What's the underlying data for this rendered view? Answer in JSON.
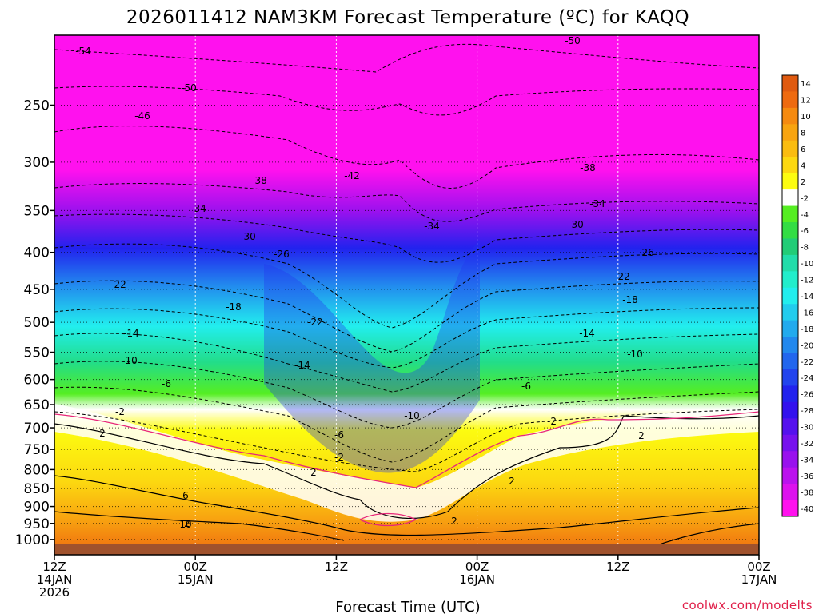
{
  "chart_data": {
    "type": "heatmap",
    "title": "2026011412 NAM3KM Forecast Temperature (ºC) for KAQQ",
    "xlabel": "Forecast Time (UTC)",
    "ylabel": "",
    "credit": "coolwx.com/modelts",
    "credit_color": "#e0204a",
    "y_axis": {
      "range_hPa": [
        1050,
        200
      ],
      "ticks": [
        250,
        300,
        350,
        400,
        450,
        500,
        550,
        600,
        650,
        700,
        750,
        800,
        850,
        900,
        950,
        1000
      ]
    },
    "x_axis": {
      "range_hours": [
        0,
        60
      ],
      "ticks": [
        {
          "hour": 0,
          "lines": [
            "12Z",
            "14JAN",
            "2026"
          ]
        },
        {
          "hour": 12,
          "lines": [
            "00Z",
            "15JAN"
          ]
        },
        {
          "hour": 24,
          "lines": [
            "12Z"
          ]
        },
        {
          "hour": 36,
          "lines": [
            "00Z",
            "16JAN"
          ]
        },
        {
          "hour": 48,
          "lines": [
            "12Z"
          ]
        },
        {
          "hour": 60,
          "lines": [
            "00Z",
            "17JAN"
          ]
        }
      ]
    },
    "colorbar": {
      "levels": [
        "14",
        "12",
        "10",
        "8",
        "6",
        "4",
        "2",
        "-2",
        "-4",
        "-6",
        "-8",
        "-10",
        "-12",
        "-14",
        "-16",
        "-18",
        "-20",
        "-22",
        "-24",
        "-26",
        "-28",
        "-30",
        "-32",
        "-34",
        "-36",
        "-38",
        "-40"
      ],
      "colors": [
        "#e05a10",
        "#ee6a10",
        "#f58a10",
        "#f8a410",
        "#fabc10",
        "#fcd810",
        "#fcfc10",
        "#ffffff",
        "#55ee22",
        "#33dd44",
        "#22cc77",
        "#22ddaa",
        "#22eecc",
        "#22eeee",
        "#22ccee",
        "#22aaee",
        "#2288ee",
        "#2266ee",
        "#2244ee",
        "#2222ee",
        "#3311ee",
        "#5511ee",
        "#7711ee",
        "#9911ee",
        "#bb11ee",
        "#dd11ee",
        "#ff11ee"
      ],
      "top_color": "#e05a10",
      "bottom_color": "#ff11ee"
    },
    "isotherm_labels": [
      "-54",
      "-50",
      "-50",
      "-46",
      "-42",
      "-38",
      "-38",
      "-34",
      "-34",
      "-34",
      "-30",
      "-30",
      "-26",
      "-26",
      "-22",
      "-22",
      "-22",
      "-18",
      "-18",
      "-14",
      "-14",
      "-14",
      "-10",
      "-10",
      "-10",
      "-6",
      "-6",
      "-6",
      "-2",
      "-2",
      "-2",
      "2",
      "2",
      "2",
      "2",
      "2",
      "2",
      "6",
      "10"
    ],
    "ground_color": "#a0522d"
  }
}
